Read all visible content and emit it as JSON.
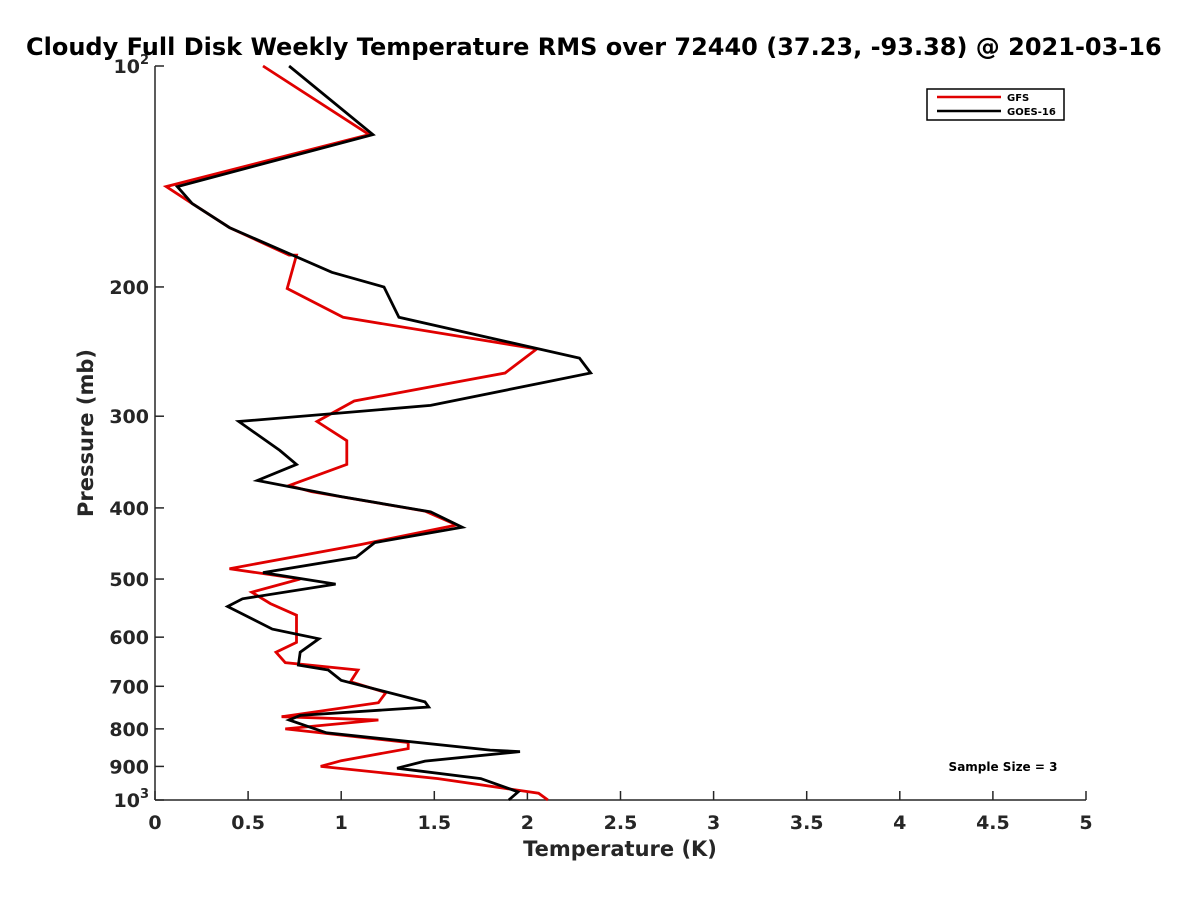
{
  "chart_data": {
    "type": "line",
    "title": "Cloudy Full Disk Weekly Temperature RMS over 72440 (37.23, -93.38) @ 2021-03-16",
    "xlabel": "Temperature (K)",
    "ylabel": "Pressure (mb)",
    "xlim": [
      0,
      5
    ],
    "ylim": [
      100,
      1000
    ],
    "yscale": "log",
    "y_reversed": true,
    "grid": false,
    "legend_position": "top-right",
    "xticks": [
      0,
      0.5,
      1,
      1.5,
      2,
      2.5,
      3,
      3.5,
      4,
      4.5,
      5
    ],
    "xtick_labels": [
      "0",
      "0.5",
      "1",
      "1.5",
      "2",
      "2.5",
      "3",
      "3.5",
      "4",
      "4.5",
      "5"
    ],
    "yticks": [
      {
        "value": 100,
        "base": "10",
        "exp": "2"
      },
      {
        "value": 200,
        "base": "200",
        "exp": ""
      },
      {
        "value": 300,
        "base": "300",
        "exp": ""
      },
      {
        "value": 400,
        "base": "400",
        "exp": ""
      },
      {
        "value": 500,
        "base": "500",
        "exp": ""
      },
      {
        "value": 600,
        "base": "600",
        "exp": ""
      },
      {
        "value": 700,
        "base": "700",
        "exp": ""
      },
      {
        "value": 800,
        "base": "800",
        "exp": ""
      },
      {
        "value": 900,
        "base": "900",
        "exp": ""
      },
      {
        "value": 1000,
        "base": "10",
        "exp": "3"
      }
    ],
    "series": [
      {
        "name": "GFS",
        "color": "#e00000",
        "points": [
          [
            0.58,
            100
          ],
          [
            1.15,
            124
          ],
          [
            0.06,
            146
          ],
          [
            0.2,
            154
          ],
          [
            0.4,
            166
          ],
          [
            0.72,
            181
          ],
          [
            0.76,
            181
          ],
          [
            0.71,
            201
          ],
          [
            1.01,
            220
          ],
          [
            2.05,
            243
          ],
          [
            1.88,
            262
          ],
          [
            1.07,
            286
          ],
          [
            0.87,
            305
          ],
          [
            1.03,
            324
          ],
          [
            1.03,
            349
          ],
          [
            0.72,
            373
          ],
          [
            0.84,
            380
          ],
          [
            1.45,
            404
          ],
          [
            1.62,
            422
          ],
          [
            1.1,
            449
          ],
          [
            0.4,
            484
          ],
          [
            0.78,
            500
          ],
          [
            0.52,
            521
          ],
          [
            0.62,
            540
          ],
          [
            0.76,
            560
          ],
          [
            0.76,
            610
          ],
          [
            0.65,
            629
          ],
          [
            0.7,
            650
          ],
          [
            1.09,
            665
          ],
          [
            1.05,
            690
          ],
          [
            1.24,
            714
          ],
          [
            1.2,
            737
          ],
          [
            0.68,
            770
          ],
          [
            1.2,
            778
          ],
          [
            0.7,
            800
          ],
          [
            1.36,
            835
          ],
          [
            1.36,
            851
          ],
          [
            1.0,
            884
          ],
          [
            0.89,
            900
          ],
          [
            1.52,
            935
          ],
          [
            2.06,
            979
          ],
          [
            2.11,
            1000
          ]
        ]
      },
      {
        "name": "GOES-16",
        "color": "#000000",
        "points": [
          [
            0.72,
            100
          ],
          [
            1.17,
            124
          ],
          [
            0.12,
            146
          ],
          [
            0.2,
            154
          ],
          [
            0.4,
            166
          ],
          [
            0.95,
            191
          ],
          [
            1.23,
            200
          ],
          [
            1.31,
            220
          ],
          [
            2.28,
            250
          ],
          [
            2.34,
            262
          ],
          [
            1.48,
            290
          ],
          [
            0.45,
            305
          ],
          [
            0.67,
            334
          ],
          [
            0.76,
            349
          ],
          [
            0.55,
            367
          ],
          [
            1.0,
            386
          ],
          [
            1.48,
            405
          ],
          [
            1.65,
            425
          ],
          [
            1.18,
            446
          ],
          [
            1.08,
            467
          ],
          [
            0.58,
            490
          ],
          [
            0.97,
            508
          ],
          [
            0.47,
            532
          ],
          [
            0.39,
            545
          ],
          [
            0.63,
            585
          ],
          [
            0.88,
            603
          ],
          [
            0.78,
            629
          ],
          [
            0.77,
            655
          ],
          [
            0.93,
            665
          ],
          [
            1.0,
            687
          ],
          [
            1.45,
            735
          ],
          [
            1.47,
            747
          ],
          [
            0.78,
            767
          ],
          [
            0.72,
            778
          ],
          [
            0.92,
            810
          ],
          [
            1.8,
            855
          ],
          [
            1.96,
            859
          ],
          [
            1.45,
            885
          ],
          [
            1.3,
            905
          ],
          [
            1.75,
            935
          ],
          [
            1.95,
            975
          ],
          [
            1.9,
            1000
          ]
        ]
      }
    ],
    "annotation": "Sample Size = 3"
  }
}
